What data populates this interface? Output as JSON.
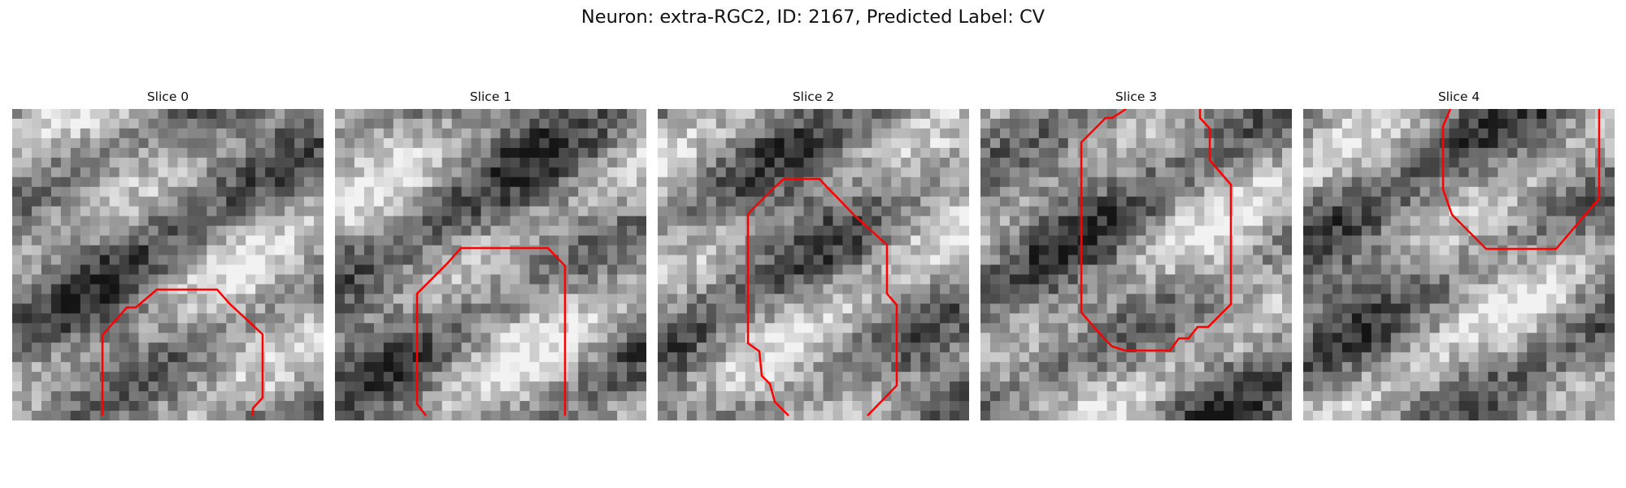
{
  "figure": {
    "title": "Neuron: extra-RGC2, ID: 2167, Predicted Label: CV",
    "panels": [
      {
        "title": "Slice 0"
      },
      {
        "title": "Slice 1"
      },
      {
        "title": "Slice 2"
      },
      {
        "title": "Slice 3"
      },
      {
        "title": "Slice 4"
      }
    ],
    "image_style": "grayscale",
    "contour_color": "#ff0000"
  }
}
